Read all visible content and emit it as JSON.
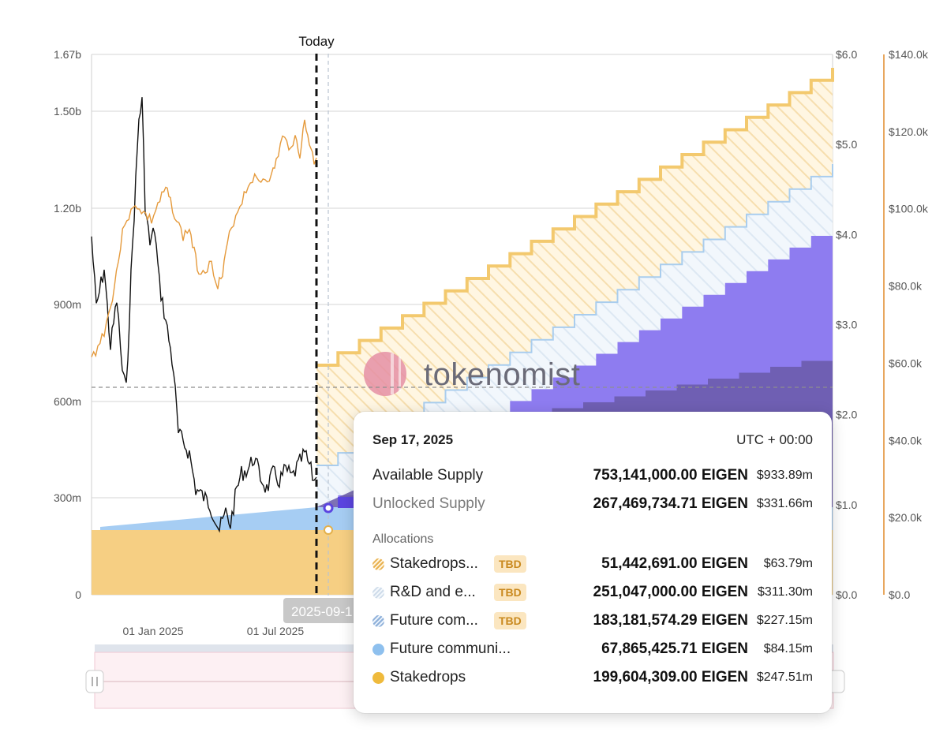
{
  "chart_data": {
    "type": "area",
    "today_label": "Today",
    "hover_date_label": "2025-09-1",
    "watermark": "tokenomist",
    "x_ticks": [
      "01 Jan 2025",
      "01 Jul 2025"
    ],
    "y_left_ticks": [
      "0",
      "300m",
      "600m",
      "900m",
      "1.20b",
      "1.50b",
      "1.67b"
    ],
    "y_right_price_ticks": [
      "$0.0",
      "$1.0",
      "$2.0",
      "$3.0",
      "$4.0",
      "$5.0",
      "$6.0"
    ],
    "y_right_cap_ticks": [
      "$0.0",
      "$20.0k",
      "$40.0k",
      "$60.0k",
      "$80.0k",
      "$100.0k",
      "$120.0k",
      "$140.0k"
    ],
    "series": [
      {
        "name": "Stakedrops",
        "kind": "stepped-area",
        "color": "#f6cf83",
        "unit": "EIGEN",
        "current": 199604309
      },
      {
        "name": "Future communi...",
        "kind": "stepped-area",
        "color": "#a6cdf3",
        "unit": "EIGEN",
        "current": 67865425.71
      },
      {
        "name": "Future com...",
        "kind": "stepped-area",
        "color": "#8e7cf0",
        "unit": "EIGEN",
        "current": 183181574.29
      },
      {
        "name": "R&D and e...",
        "kind": "stepped-area",
        "color": "#eef4fb",
        "unit": "EIGEN",
        "current": 251047000
      },
      {
        "name": "Stakedrops...",
        "kind": "stepped-area",
        "color": "#fdf0d8",
        "unit": "EIGEN",
        "current": 51442691
      }
    ]
  },
  "tooltip": {
    "date": "Sep 17, 2025",
    "timezone": "UTC + 00:00",
    "available_label": "Available Supply",
    "available_amount": "753,141,000.00 EIGEN",
    "available_usd": "$933.89m",
    "unlocked_label": "Unlocked Supply",
    "unlocked_amount": "267,469,734.71 EIGEN",
    "unlocked_usd": "$331.66m",
    "section_label": "Allocations",
    "allocations": [
      {
        "name": "Stakedrops...",
        "badge": "TBD",
        "amount": "51,442,691.00 EIGEN",
        "usd": "$63.79m"
      },
      {
        "name": "R&D and e...",
        "badge": "TBD",
        "amount": "251,047,000.00 EIGEN",
        "usd": "$311.30m"
      },
      {
        "name": "Future com...",
        "badge": "TBD",
        "amount": "183,181,574.29 EIGEN",
        "usd": "$227.15m"
      },
      {
        "name": "Future communi...",
        "badge": "",
        "amount": "67,865,425.71 EIGEN",
        "usd": "$84.15m"
      },
      {
        "name": "Stakedrops",
        "badge": "",
        "amount": "199,604,309.00 EIGEN",
        "usd": "$247.51m"
      }
    ]
  }
}
